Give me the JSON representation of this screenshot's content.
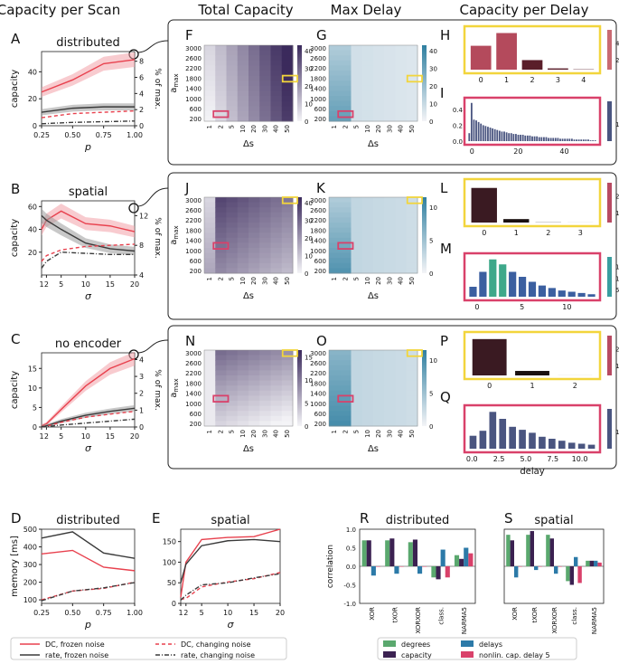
{
  "colors": {
    "dc": "#e8414e",
    "rate": "#3a3a3a",
    "grey_band": "#9a9a9a",
    "pink_band": "#f2a0a8",
    "box_yellow": "#f2d53c",
    "box_pink": "#d9416a",
    "purple_hi": "#3b2a5c",
    "blue_hi": "#2f7fa0",
    "deg_green": "#5aa86e",
    "cap_purple": "#3b2151",
    "del_blue": "#2c7aa8",
    "nonlin_pink": "#d9416a"
  },
  "column_titles": [
    "Capacity per Scan",
    "Total Capacity",
    "Max Delay",
    "Capacity per Delay"
  ],
  "panel_letters": [
    "A",
    "B",
    "C",
    "D",
    "E",
    "F",
    "G",
    "H",
    "I",
    "J",
    "K",
    "L",
    "M",
    "N",
    "O",
    "P",
    "Q",
    "R",
    "S"
  ],
  "heat_axes": {
    "ylabel": "a",
    "ylabel_sub": "max",
    "xlabel": "Δs",
    "yticks": [
      "3000",
      "2600",
      "2200",
      "1800",
      "1400",
      "1000",
      "600",
      "200"
    ],
    "xticks": [
      "1",
      "2",
      "5",
      "10",
      "20",
      "30",
      "40",
      "50"
    ]
  },
  "cbars": {
    "F": [
      "0",
      "10",
      "20",
      "30",
      "40"
    ],
    "G": [
      "0",
      "10",
      "20",
      "30",
      "40"
    ],
    "H": [
      "20",
      "40"
    ],
    "I": [
      "1"
    ],
    "J": [
      "0",
      "10",
      "20",
      "30",
      "40"
    ],
    "K": [
      "0",
      "5",
      "10"
    ],
    "L": [
      "100",
      "200"
    ],
    "M": [
      "5",
      "10",
      "15"
    ],
    "N": [
      "0",
      "5",
      "10",
      "15"
    ],
    "O": [
      "0",
      "5",
      "10"
    ],
    "P": [
      "100",
      "200"
    ],
    "Q": [
      "1"
    ]
  },
  "legend_bottom": [
    "DC, frozen noise",
    "rate, frozen noise",
    "DC, changing noise",
    "rate, changing noise"
  ],
  "legend_corr": [
    "degrees",
    "delays",
    "capacity",
    "nonlin. cap. delay 5"
  ],
  "chart_data": [
    {
      "panel": "A",
      "type": "line",
      "title": "distributed",
      "xlabel": "p",
      "ylabel": "capacity",
      "y2label": "% of max.",
      "x": [
        0.25,
        0.5,
        0.75,
        1.0
      ],
      "xticks": [
        "0.25",
        "0.50",
        "0.75",
        "1.00"
      ],
      "ylim": [
        0,
        55
      ],
      "yticks": [
        "0",
        "20",
        "40"
      ],
      "y2ticks": [
        "0",
        "2",
        "4",
        "6",
        "8"
      ],
      "series": [
        {
          "name": "DC, frozen noise",
          "values": [
            25,
            34,
            46,
            49
          ]
        },
        {
          "name": "rate, frozen noise",
          "values": [
            10,
            13,
            14,
            14
          ]
        },
        {
          "name": "DC, changing noise",
          "values": [
            6,
            9,
            10,
            11
          ]
        },
        {
          "name": "rate, changing noise",
          "values": [
            1.5,
            2.5,
            3,
            3.5
          ]
        }
      ]
    },
    {
      "panel": "B",
      "type": "line",
      "title": "spatial",
      "xlabel": "σ",
      "ylabel": "capacity",
      "y2label": "% of max.",
      "x": [
        1,
        2,
        5,
        10,
        15,
        20
      ],
      "xticks": [
        "1",
        "2",
        "5",
        "10",
        "15",
        "20"
      ],
      "ylim": [
        0,
        65
      ],
      "yticks": [
        "20",
        "40",
        "60"
      ],
      "y2ticks": [
        "4",
        "8",
        "12"
      ],
      "series": [
        {
          "name": "DC, frozen noise",
          "values": [
            40,
            48,
            56,
            45,
            43,
            38
          ]
        },
        {
          "name": "rate, frozen noise",
          "values": [
            52,
            48,
            40,
            28,
            23,
            21
          ]
        },
        {
          "name": "DC, changing noise",
          "values": [
            12,
            17,
            22,
            25,
            26,
            27
          ]
        },
        {
          "name": "rate, changing noise",
          "values": [
            6,
            12,
            20,
            19,
            18,
            18
          ]
        }
      ]
    },
    {
      "panel": "C",
      "type": "line",
      "title": "no encoder",
      "xlabel": "σ",
      "ylabel": "capacity",
      "y2label": "% of max.",
      "x": [
        1,
        2,
        5,
        10,
        15,
        20
      ],
      "xticks": [
        "1",
        "2",
        "5",
        "10",
        "15",
        "20"
      ],
      "ylim": [
        0,
        19
      ],
      "yticks": [
        "0",
        "5",
        "10",
        "15"
      ],
      "y2ticks": [
        "0",
        "1",
        "2",
        "3",
        "4"
      ],
      "series": [
        {
          "name": "DC, frozen noise",
          "values": [
            0.3,
            0.8,
            4.5,
            10.5,
            15,
            17.5
          ]
        },
        {
          "name": "rate, frozen noise",
          "values": [
            0.1,
            0.3,
            1.5,
            3,
            4,
            4.8
          ]
        },
        {
          "name": "DC, changing noise",
          "values": [
            0.1,
            0.2,
            1.2,
            2.5,
            3.3,
            4
          ]
        },
        {
          "name": "rate, changing noise",
          "values": [
            0.1,
            0.1,
            0.5,
            1,
            1.5,
            2
          ]
        }
      ]
    },
    {
      "panel": "D",
      "type": "line",
      "title": "distributed",
      "xlabel": "p",
      "ylabel": "memory [ms]",
      "x": [
        0.25,
        0.5,
        0.75,
        1.0
      ],
      "xticks": [
        "0.25",
        "0.50",
        "0.75",
        "1.00"
      ],
      "ylim": [
        80,
        500
      ],
      "yticks": [
        "100",
        "200",
        "300",
        "400",
        "500"
      ],
      "series": [
        {
          "name": "DC, frozen noise",
          "values": [
            360,
            380,
            285,
            265
          ]
        },
        {
          "name": "rate, frozen noise",
          "values": [
            450,
            485,
            365,
            335
          ]
        },
        {
          "name": "DC, changing noise",
          "values": [
            100,
            150,
            165,
            200
          ]
        },
        {
          "name": "rate, changing noise",
          "values": [
            95,
            150,
            168,
            198
          ]
        }
      ]
    },
    {
      "panel": "E",
      "type": "line",
      "title": "spatial",
      "xlabel": "σ",
      "ylabel": "",
      "x": [
        1,
        2,
        5,
        10,
        15,
        20
      ],
      "xticks": [
        "1",
        "2",
        "5",
        "10",
        "15",
        "20"
      ],
      "ylim": [
        0,
        180
      ],
      "yticks": [
        "0",
        "50",
        "100",
        "150"
      ],
      "series": [
        {
          "name": "DC, frozen noise",
          "values": [
            15,
            100,
            155,
            160,
            162,
            180
          ]
        },
        {
          "name": "rate, frozen noise",
          "values": [
            50,
            95,
            140,
            152,
            155,
            150
          ]
        },
        {
          "name": "DC, changing noise",
          "values": [
            10,
            12,
            40,
            52,
            60,
            75
          ]
        },
        {
          "name": "rate, changing noise",
          "values": [
            8,
            20,
            45,
            50,
            62,
            72
          ]
        }
      ]
    },
    {
      "panel": "H",
      "type": "bar",
      "x": [
        "0",
        "1",
        "2",
        "3",
        "4"
      ],
      "values": [
        15,
        23,
        6,
        0.8,
        0.2
      ],
      "ylim": [
        0,
        25
      ]
    },
    {
      "panel": "I",
      "type": "bar",
      "xticks": [
        "0",
        "20",
        "40"
      ],
      "yticks": [
        "0.0",
        "0.2",
        "0.4"
      ],
      "ylim": [
        0,
        0.5
      ],
      "values": [
        0.1,
        0.48,
        0.27,
        0.26,
        0.24,
        0.22,
        0.2,
        0.19,
        0.18,
        0.17,
        0.16,
        0.15,
        0.14,
        0.13,
        0.12,
        0.12,
        0.11,
        0.1,
        0.1,
        0.09,
        0.09,
        0.08,
        0.08,
        0.08,
        0.07,
        0.07,
        0.07,
        0.06,
        0.06,
        0.06,
        0.05,
        0.05,
        0.05,
        0.05,
        0.04,
        0.04,
        0.04,
        0.04,
        0.04,
        0.03,
        0.03,
        0.03,
        0.03,
        0.03,
        0.03,
        0.02,
        0.02,
        0.02,
        0.02,
        0.02,
        0.02,
        0.02,
        0.01,
        0.01,
        0.01
      ]
    },
    {
      "panel": "L",
      "type": "bar",
      "x": [
        "0",
        "1",
        "2",
        "3"
      ],
      "values": [
        200,
        20,
        1,
        0.2
      ],
      "ylim": [
        0,
        230
      ]
    },
    {
      "panel": "M",
      "type": "bar",
      "xticks": [
        "0",
        "5",
        "10"
      ],
      "ylim": [
        0,
        16
      ],
      "values": [
        4,
        10,
        15,
        13,
        10,
        8,
        6,
        4.5,
        3.5,
        2.5,
        2,
        1.5,
        1
      ]
    },
    {
      "panel": "P",
      "type": "bar",
      "x": [
        "0",
        "1",
        "2"
      ],
      "values": [
        210,
        26,
        0.2
      ],
      "ylim": [
        0,
        230
      ]
    },
    {
      "panel": "Q",
      "type": "bar",
      "xlabel": "delay",
      "xticks": [
        "0.0",
        "2.5",
        "5.0",
        "7.5",
        "10.0"
      ],
      "ylim": [
        0,
        0.4
      ],
      "values": [
        0.13,
        0.18,
        0.37,
        0.3,
        0.22,
        0.19,
        0.16,
        0.12,
        0.1,
        0.08,
        0.06,
        0.05,
        0.04
      ]
    },
    {
      "panel": "R",
      "type": "bar",
      "title": "distributed",
      "ylabel": "correlation",
      "categories": [
        "XOR",
        "tXOR",
        "XORXOR",
        "class.",
        "NARMA5"
      ],
      "ylim": [
        -1,
        1
      ],
      "yticks": [
        "-1.0",
        "-0.5",
        "0.0",
        "0.5",
        "1.0"
      ],
      "series": [
        {
          "name": "degrees",
          "values": [
            0.7,
            0.7,
            0.65,
            -0.3,
            0.3
          ]
        },
        {
          "name": "capacity",
          "values": [
            0.7,
            0.75,
            0.72,
            -0.35,
            0.2
          ]
        },
        {
          "name": "delays",
          "values": [
            -0.25,
            -0.2,
            -0.2,
            0.45,
            0.5
          ]
        },
        {
          "name": "nonlin. cap. delay 5",
          "values": [
            0,
            0,
            0,
            -0.3,
            0.35
          ]
        }
      ]
    },
    {
      "panel": "S",
      "type": "bar",
      "title": "spatial",
      "categories": [
        "XOR",
        "tXOR",
        "XORXOR",
        "class.",
        "NARMA5"
      ],
      "ylim": [
        -1,
        1
      ],
      "series": [
        {
          "name": "degrees",
          "values": [
            0.85,
            0.85,
            0.85,
            -0.4,
            0.15
          ]
        },
        {
          "name": "capacity",
          "values": [
            0.7,
            0.95,
            0.75,
            -0.5,
            0.15
          ]
        },
        {
          "name": "delays",
          "values": [
            -0.3,
            -0.1,
            -0.2,
            0.25,
            0.15
          ]
        },
        {
          "name": "nonlin. cap. delay 5",
          "values": [
            0,
            0,
            0,
            -0.45,
            0.1
          ]
        }
      ]
    }
  ]
}
